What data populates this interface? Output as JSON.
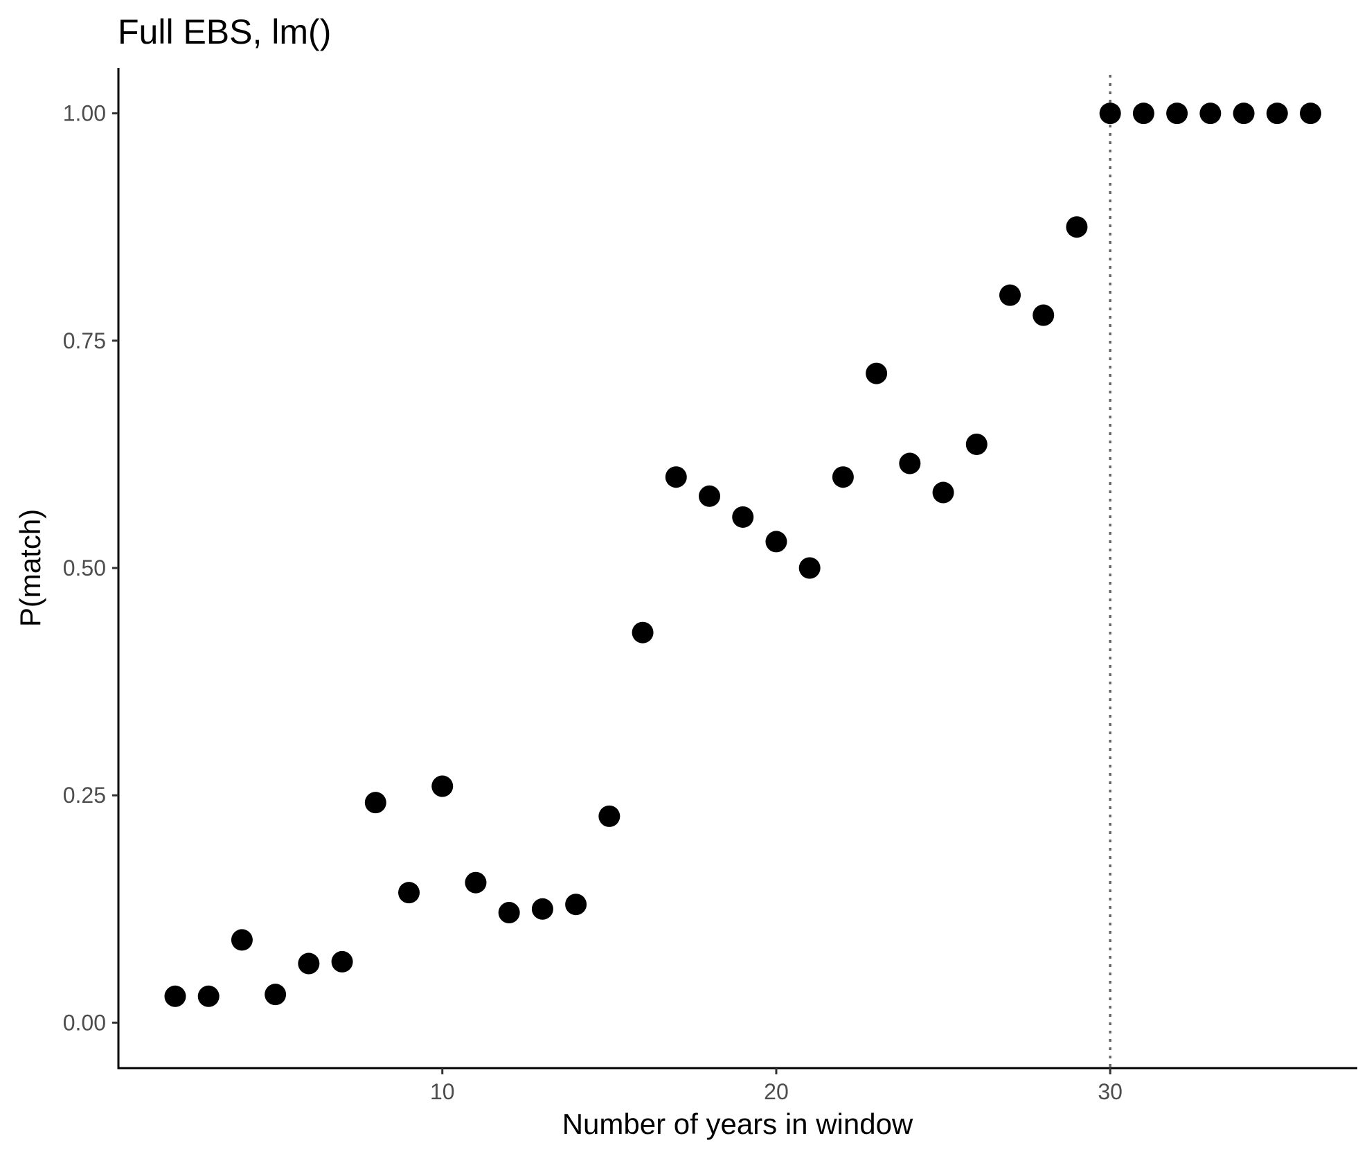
{
  "chart_data": {
    "type": "scatter",
    "title": "Full EBS, lm()",
    "xlabel": "Number of years in window",
    "ylabel": "P(match)",
    "xlim": [
      0.3,
      37.4
    ],
    "ylim": [
      -0.05,
      1.05
    ],
    "x_ticks": [
      10,
      20,
      30
    ],
    "y_ticks": [
      0.0,
      0.25,
      0.5,
      0.75,
      1.0
    ],
    "x_tick_labels": [
      "10",
      "20",
      "30"
    ],
    "y_tick_labels": [
      "0.00",
      "0.25",
      "0.50",
      "0.75",
      "1.00"
    ],
    "grid": false,
    "vline_x": 30,
    "x": [
      2,
      3,
      4,
      5,
      6,
      7,
      8,
      9,
      10,
      11,
      12,
      13,
      14,
      15,
      16,
      17,
      18,
      19,
      20,
      21,
      22,
      23,
      24,
      25,
      26,
      27,
      28,
      29,
      30,
      31,
      32,
      33,
      34,
      35,
      36
    ],
    "y": [
      0.029,
      0.029,
      0.091,
      0.031,
      0.065,
      0.067,
      0.242,
      0.143,
      0.26,
      0.154,
      0.121,
      0.125,
      0.13,
      0.227,
      0.429,
      0.6,
      0.579,
      0.556,
      0.529,
      0.5,
      0.6,
      0.714,
      0.615,
      0.583,
      0.636,
      0.8,
      0.778,
      0.875,
      1.0,
      1.0,
      1.0,
      1.0,
      1.0,
      1.0,
      1.0
    ]
  }
}
